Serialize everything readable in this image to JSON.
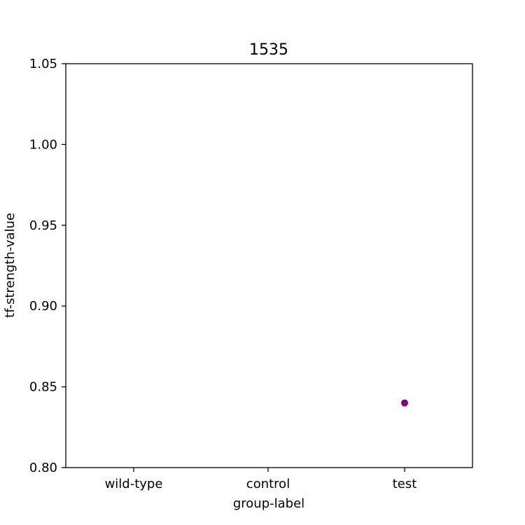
{
  "chart_data": {
    "type": "scatter",
    "title": "1535",
    "xlabel": "group-label",
    "ylabel": "tf-strength-value",
    "categories": [
      "wild-type",
      "control",
      "test"
    ],
    "ylim": [
      0.8,
      1.05
    ],
    "yticks": [
      "0.80",
      "0.85",
      "0.90",
      "0.95",
      "1.00",
      "1.05"
    ],
    "grid": false,
    "series": [
      {
        "color": "#800080",
        "points": [
          {
            "x": "test",
            "y": 0.84
          }
        ]
      }
    ]
  }
}
